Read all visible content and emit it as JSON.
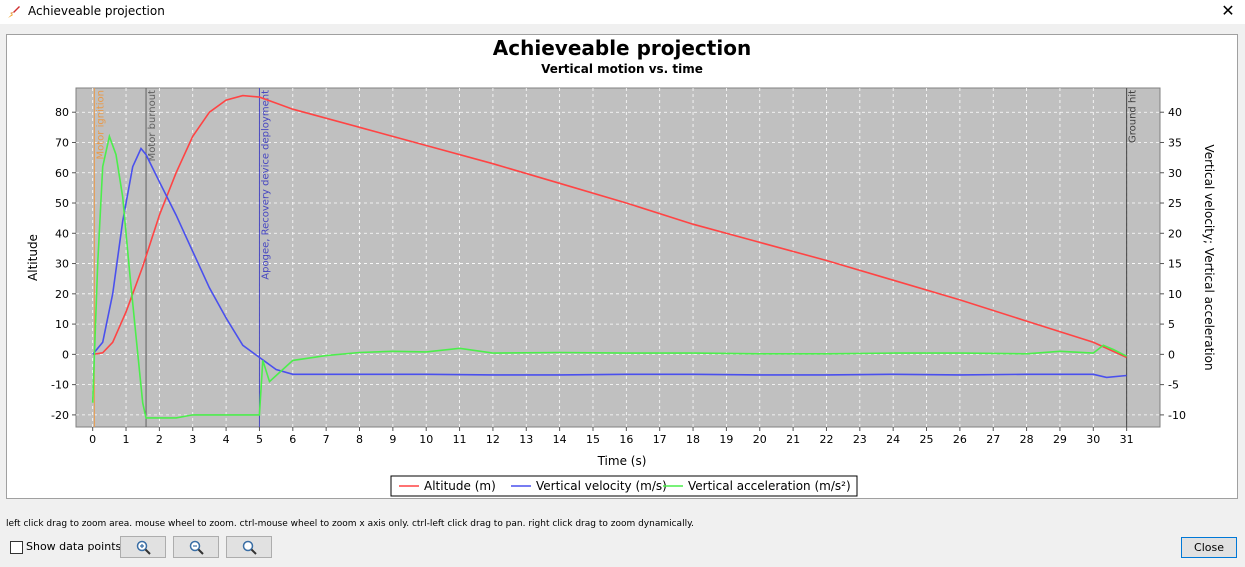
{
  "window": {
    "title": "Achieveable projection",
    "close_glyph": "✕"
  },
  "controls": {
    "hint": "left click drag to zoom area. mouse wheel to zoom. ctrl-mouse wheel to zoom x axis only. ctrl-left click drag to pan.  right click drag to zoom dynamically.",
    "show_data_points_label": "Show data points",
    "show_data_points_checked": false,
    "zoom_buttons": [
      "zoom-in-icon",
      "zoom-out-icon",
      "zoom-fit-icon"
    ],
    "close_label": "Close"
  },
  "chart_data": {
    "type": "line",
    "title": "Achieveable projection",
    "subtitle": "Vertical motion vs. time",
    "xlabel": "Time (s)",
    "ylabel_left": "Altitude",
    "ylabel_right": "Vertical velocity; Vertical acceleration",
    "xlim": [
      -0.5,
      32
    ],
    "ylim_left": [
      -24,
      88
    ],
    "ylim_right": [
      -12,
      44
    ],
    "xticks": [
      0,
      1,
      2,
      3,
      4,
      5,
      6,
      7,
      8,
      9,
      10,
      11,
      12,
      13,
      14,
      15,
      16,
      17,
      18,
      19,
      20,
      21,
      22,
      23,
      24,
      25,
      26,
      27,
      28,
      29,
      30,
      31
    ],
    "yticks_left": [
      -20,
      -10,
      0,
      10,
      20,
      30,
      40,
      50,
      60,
      70,
      80
    ],
    "yticks_right": [
      -10,
      -5,
      0,
      5,
      10,
      15,
      20,
      25,
      30,
      35,
      40
    ],
    "grid": true,
    "plot_background": "#c0c0c0",
    "legend_position": "bottom",
    "events": [
      {
        "label": "Motor ignition",
        "x": 0.05,
        "color": "#e89a4a"
      },
      {
        "label": "Motor burnout",
        "x": 1.6,
        "color": "#606060"
      },
      {
        "label": "Apogee, Recovery device deployment",
        "x": 5.0,
        "color": "#4848c0"
      },
      {
        "label": "Ground hit",
        "x": 31.0,
        "color": "#404040"
      }
    ],
    "series": [
      {
        "name": "Altitude (m)",
        "axis": "left",
        "color": "#ff4444",
        "x": [
          0,
          0.3,
          0.6,
          1.0,
          1.5,
          2.0,
          2.5,
          3.0,
          3.5,
          4.0,
          4.5,
          5.0,
          5.5,
          6.0,
          8.0,
          10.0,
          12.0,
          14.0,
          16.0,
          18.0,
          20.0,
          22.0,
          24.0,
          26.0,
          28.0,
          30.0,
          31.0
        ],
        "y": [
          0,
          0.5,
          4,
          14,
          29,
          46,
          60,
          72,
          80,
          84,
          85.5,
          85,
          83,
          81,
          75,
          69,
          63,
          56.5,
          50,
          43,
          37,
          31,
          24.5,
          18,
          11,
          4,
          -1
        ]
      },
      {
        "name": "Vertical velocity (m/s)",
        "axis": "right",
        "color": "#4a50ee",
        "x": [
          0,
          0.3,
          0.6,
          0.9,
          1.2,
          1.45,
          1.6,
          2.0,
          2.5,
          3.0,
          3.5,
          4.0,
          4.5,
          5.0,
          5.5,
          6.0,
          8.0,
          10.0,
          12.0,
          14.0,
          16.0,
          18.0,
          20.0,
          22.0,
          24.0,
          26.0,
          28.0,
          30.0,
          30.4,
          31.0
        ],
        "y": [
          0,
          2,
          10,
          22,
          31,
          34,
          33,
          28.5,
          23,
          17,
          11,
          6,
          1.5,
          -0.5,
          -2.5,
          -3.3,
          -3.3,
          -3.3,
          -3.4,
          -3.4,
          -3.3,
          -3.3,
          -3.4,
          -3.4,
          -3.3,
          -3.4,
          -3.3,
          -3.3,
          -3.8,
          -3.5
        ]
      },
      {
        "name": "Vertical acceleration (m/s²)",
        "axis": "right",
        "color": "#4cee4c",
        "x": [
          0,
          0.15,
          0.3,
          0.5,
          0.7,
          0.9,
          1.1,
          1.3,
          1.5,
          1.6,
          2.5,
          3.0,
          4.0,
          5.0,
          5.1,
          5.3,
          5.6,
          6.0,
          7.0,
          8.0,
          9.0,
          10.0,
          11.0,
          12.0,
          14.0,
          16.0,
          18.0,
          20.0,
          22.0,
          24.0,
          26.0,
          28.0,
          29.0,
          30.0,
          30.3,
          30.6,
          31.0
        ],
        "y": [
          -8,
          15,
          31,
          36,
          33,
          26,
          14,
          3,
          -8,
          -10.5,
          -10.5,
          -10,
          -10,
          -10,
          -1,
          -4.5,
          -3,
          -1,
          -0.2,
          0.3,
          0.5,
          0.4,
          1,
          0.2,
          0.3,
          0.2,
          0.2,
          0.1,
          0.1,
          0.2,
          0.2,
          0.1,
          0.5,
          0.2,
          1.5,
          0.8,
          -0.3
        ]
      }
    ]
  }
}
